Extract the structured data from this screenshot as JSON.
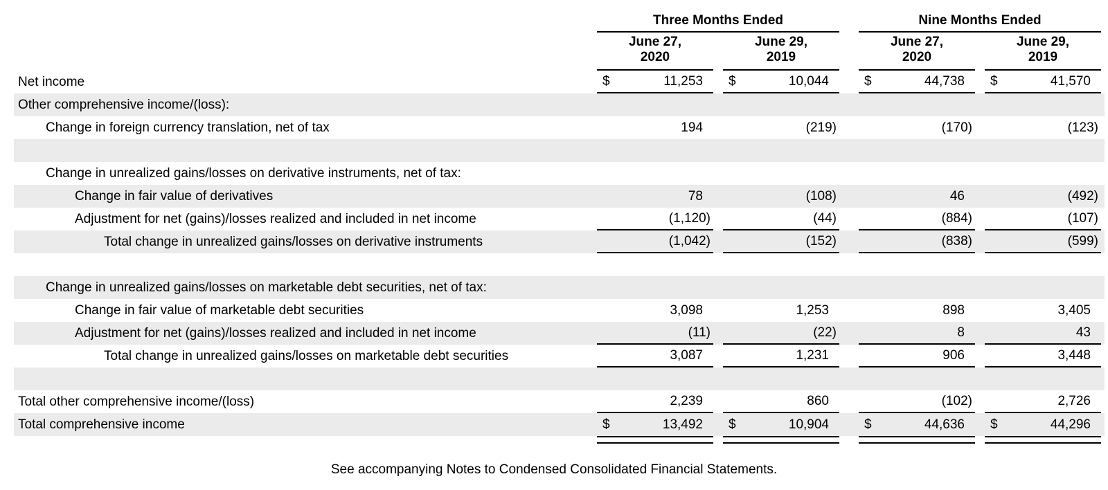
{
  "table": {
    "header": {
      "groups": [
        {
          "label": "Three Months Ended"
        },
        {
          "label": "Nine Months Ended"
        }
      ],
      "columns": [
        {
          "line1": "June 27,",
          "line2": "2020"
        },
        {
          "line1": "June 29,",
          "line2": "2019"
        },
        {
          "line1": "June 27,",
          "line2": "2020"
        },
        {
          "line1": "June 29,",
          "line2": "2019"
        }
      ]
    },
    "rows": [
      {
        "label": "Net income",
        "dollar": "$",
        "values": [
          "11,253",
          "10,044",
          "44,738",
          "41,570"
        ]
      },
      {
        "label": "Other comprehensive income/(loss):",
        "dollar": "",
        "values": [
          "",
          "",
          "",
          ""
        ]
      },
      {
        "label": "Change in foreign currency translation, net of tax",
        "dollar": "",
        "values": [
          "194",
          "(219)",
          "(170)",
          "(123)"
        ]
      },
      {
        "label": "",
        "dollar": "",
        "values": [
          "",
          "",
          "",
          ""
        ]
      },
      {
        "label": "Change in unrealized gains/losses on derivative instruments, net of tax:",
        "dollar": "",
        "values": [
          "",
          "",
          "",
          ""
        ]
      },
      {
        "label": "Change in fair value of derivatives",
        "dollar": "",
        "values": [
          "78",
          "(108)",
          "46",
          "(492)"
        ]
      },
      {
        "label": "Adjustment for net (gains)/losses realized and included in net income",
        "dollar": "",
        "values": [
          "(1,120)",
          "(44)",
          "(884)",
          "(107)"
        ]
      },
      {
        "label": "Total change in unrealized gains/losses on derivative instruments",
        "dollar": "",
        "values": [
          "(1,042)",
          "(152)",
          "(838)",
          "(599)"
        ]
      },
      {
        "label": "",
        "dollar": "",
        "values": [
          "",
          "",
          "",
          ""
        ]
      },
      {
        "label": "Change in unrealized gains/losses on marketable debt securities, net of tax:",
        "dollar": "",
        "values": [
          "",
          "",
          "",
          ""
        ]
      },
      {
        "label": "Change in fair value of marketable debt securities",
        "dollar": "",
        "values": [
          "3,098",
          "1,253",
          "898",
          "3,405"
        ]
      },
      {
        "label": "Adjustment for net (gains)/losses realized and included in net income",
        "dollar": "",
        "values": [
          "(11)",
          "(22)",
          "8",
          "43"
        ]
      },
      {
        "label": "Total change in unrealized gains/losses on marketable debt securities",
        "dollar": "",
        "values": [
          "3,087",
          "1,231",
          "906",
          "3,448"
        ]
      },
      {
        "label": "",
        "dollar": "",
        "values": [
          "",
          "",
          "",
          ""
        ]
      },
      {
        "label": "Total other comprehensive income/(loss)",
        "dollar": "",
        "values": [
          "2,239",
          "860",
          "(102)",
          "2,726"
        ]
      },
      {
        "label": "Total comprehensive income",
        "dollar": "$",
        "values": [
          "13,492",
          "10,904",
          "44,636",
          "44,296"
        ]
      }
    ],
    "stripe_color": "#ebebeb"
  },
  "footer_note": "See accompanying Notes to Condensed Consolidated Financial Statements."
}
